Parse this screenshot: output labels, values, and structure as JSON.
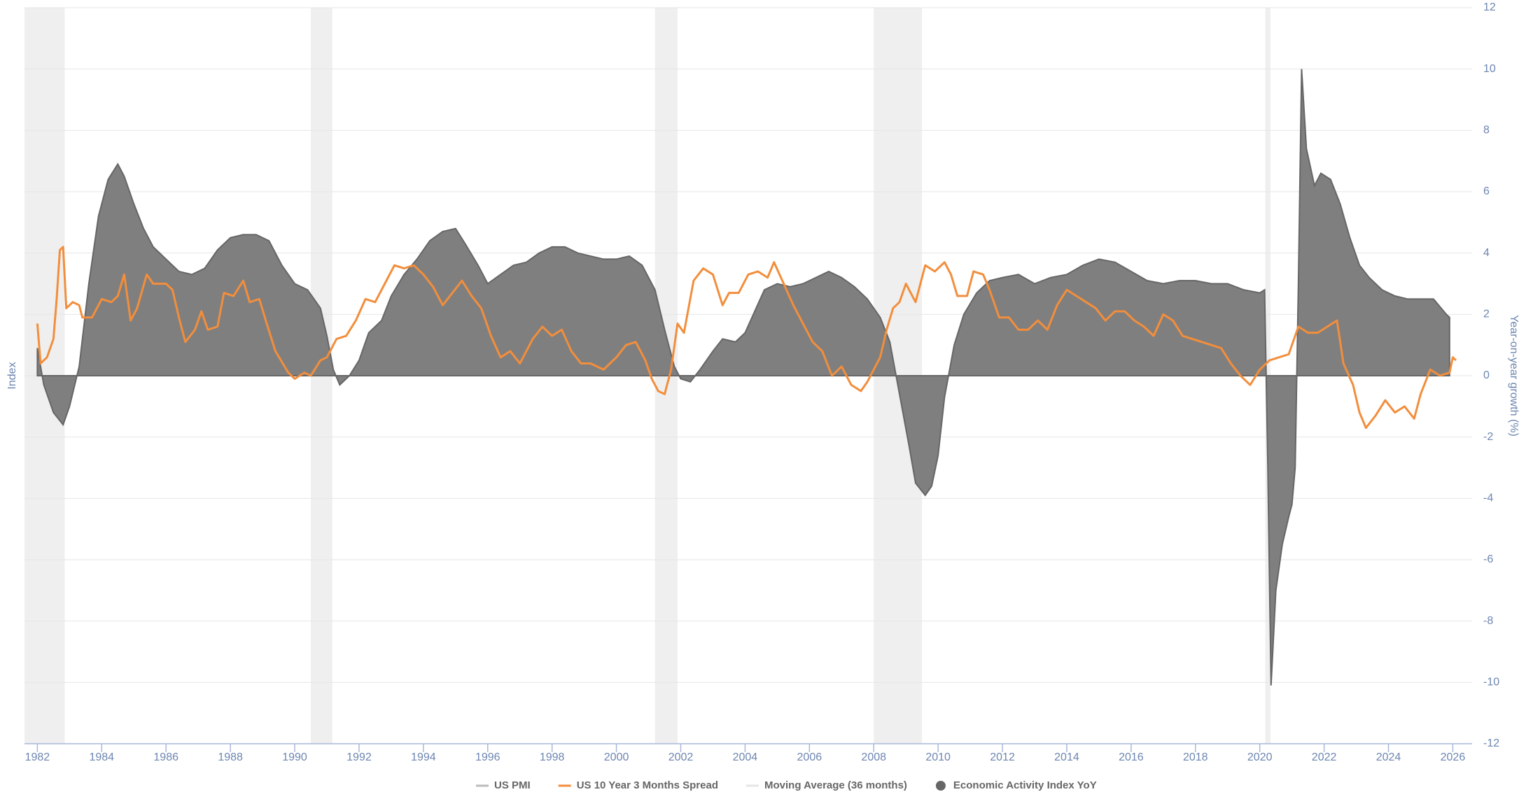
{
  "chart_data": {
    "type": "area-line",
    "y_axis_left_label": "Index",
    "y_axis_right_label": "Year-on-year growth (%)",
    "xlim": [
      1981.6,
      2026.6
    ],
    "xticks": [
      1982,
      1984,
      1986,
      1988,
      1990,
      1992,
      1994,
      1996,
      1998,
      2000,
      2002,
      2004,
      2006,
      2008,
      2010,
      2012,
      2014,
      2016,
      2018,
      2020,
      2022,
      2024,
      2026
    ],
    "y2lim": [
      -12,
      12
    ],
    "y2ticks": [
      -12,
      -10,
      -8,
      -6,
      -4,
      -2,
      0,
      2,
      4,
      6,
      8,
      10,
      12
    ],
    "grid": true,
    "recessions": [
      [
        1981.6,
        1982.85
      ],
      [
        1990.5,
        1991.17
      ],
      [
        2001.2,
        2001.9
      ],
      [
        2008.0,
        2009.5
      ],
      [
        2020.17,
        2020.33
      ]
    ],
    "recession_color": "#efefef",
    "series": [
      {
        "name": "US PMI",
        "color": "#bbbbbb",
        "kind": "line"
      },
      {
        "name": "US 10 Year 3 Months Spread",
        "color": "#f28e3c",
        "kind": "line",
        "axis": "y2",
        "x": [
          1982.0,
          1982.1,
          1982.3,
          1982.5,
          1982.6,
          1982.7,
          1982.8,
          1982.9,
          1983.1,
          1983.3,
          1983.4,
          1983.7,
          1984.0,
          1984.3,
          1984.5,
          1984.7,
          1984.9,
          1985.1,
          1985.4,
          1985.6,
          1986.0,
          1986.2,
          1986.4,
          1986.6,
          1986.9,
          1987.1,
          1987.3,
          1987.6,
          1987.8,
          1988.1,
          1988.4,
          1988.6,
          1988.9,
          1989.1,
          1989.4,
          1989.8,
          1990.0,
          1990.3,
          1990.5,
          1990.8,
          1991.0,
          1991.3,
          1991.6,
          1991.9,
          1992.2,
          1992.5,
          1992.8,
          1993.1,
          1993.4,
          1993.7,
          1994.0,
          1994.3,
          1994.6,
          1994.9,
          1995.2,
          1995.5,
          1995.8,
          1996.1,
          1996.4,
          1996.7,
          1997.0,
          1997.4,
          1997.7,
          1998.0,
          1998.3,
          1998.6,
          1998.9,
          1999.2,
          1999.6,
          2000.0,
          2000.3,
          2000.6,
          2000.9,
          2001.1,
          2001.3,
          2001.5,
          2001.7,
          2001.9,
          2002.1,
          2002.4,
          2002.7,
          2003.0,
          2003.3,
          2003.5,
          2003.8,
          2004.1,
          2004.4,
          2004.7,
          2004.9,
          2005.2,
          2005.5,
          2005.8,
          2006.1,
          2006.4,
          2006.7,
          2007.0,
          2007.3,
          2007.6,
          2007.8,
          2008.0,
          2008.2,
          2008.4,
          2008.6,
          2008.8,
          2009.0,
          2009.3,
          2009.6,
          2009.9,
          2010.2,
          2010.4,
          2010.6,
          2010.9,
          2011.1,
          2011.4,
          2011.6,
          2011.9,
          2012.2,
          2012.5,
          2012.8,
          2013.1,
          2013.4,
          2013.7,
          2014.0,
          2014.3,
          2014.6,
          2014.9,
          2015.2,
          2015.5,
          2015.8,
          2016.1,
          2016.4,
          2016.7,
          2017.0,
          2017.3,
          2017.6,
          2017.9,
          2018.2,
          2018.5,
          2018.8,
          2019.1,
          2019.4,
          2019.7,
          2020.0,
          2020.3,
          2020.6,
          2020.9,
          2021.2,
          2021.5,
          2021.8,
          2022.1,
          2022.4,
          2022.6,
          2022.9,
          2023.1,
          2023.3,
          2023.6,
          2023.9,
          2024.2,
          2024.5,
          2024.8,
          2025.0,
          2025.3,
          2025.6,
          2025.9,
          2026.0,
          2026.1
        ],
        "values": [
          1.7,
          0.4,
          0.6,
          1.2,
          2.5,
          4.1,
          4.2,
          2.2,
          2.4,
          2.3,
          1.9,
          1.9,
          2.5,
          2.4,
          2.6,
          3.3,
          1.8,
          2.2,
          3.3,
          3.0,
          3.0,
          2.8,
          1.9,
          1.1,
          1.5,
          2.1,
          1.5,
          1.6,
          2.7,
          2.6,
          3.1,
          2.4,
          2.5,
          1.8,
          0.8,
          0.1,
          -0.1,
          0.1,
          0.0,
          0.5,
          0.6,
          1.2,
          1.3,
          1.8,
          2.5,
          2.4,
          3.0,
          3.6,
          3.5,
          3.6,
          3.3,
          2.9,
          2.3,
          2.7,
          3.1,
          2.6,
          2.2,
          1.3,
          0.6,
          0.8,
          0.4,
          1.2,
          1.6,
          1.3,
          1.5,
          0.8,
          0.4,
          0.4,
          0.2,
          0.6,
          1.0,
          1.1,
          0.5,
          -0.1,
          -0.5,
          -0.6,
          0.2,
          1.7,
          1.4,
          3.1,
          3.5,
          3.3,
          2.3,
          2.7,
          2.7,
          3.3,
          3.4,
          3.2,
          3.7,
          3.0,
          2.3,
          1.7,
          1.1,
          0.8,
          0.0,
          0.3,
          -0.3,
          -0.5,
          -0.2,
          0.2,
          0.6,
          1.5,
          2.2,
          2.4,
          3.0,
          2.4,
          3.6,
          3.4,
          3.7,
          3.3,
          2.6,
          2.6,
          3.4,
          3.3,
          2.8,
          1.9,
          1.9,
          1.5,
          1.5,
          1.8,
          1.5,
          2.3,
          2.8,
          2.6,
          2.4,
          2.2,
          1.8,
          2.1,
          2.1,
          1.8,
          1.6,
          1.3,
          2.0,
          1.8,
          1.3,
          1.2,
          1.1,
          1.0,
          0.9,
          0.4,
          0.0,
          -0.3,
          0.2,
          0.5,
          0.6,
          0.7,
          1.6,
          1.4,
          1.4,
          1.6,
          1.8,
          0.4,
          -0.3,
          -1.2,
          -1.7,
          -1.3,
          -0.8,
          -1.2,
          -1.0,
          -1.4,
          -0.6,
          0.2,
          0.0,
          0.1,
          0.6,
          0.5
        ]
      },
      {
        "name": "Moving Average (36 months)",
        "color": "#e6e6e6",
        "kind": "line"
      },
      {
        "name": "Economic Activity Index YoY",
        "color": "#666666",
        "kind": "area",
        "axis": "y2",
        "x": [
          1982.0,
          1982.2,
          1982.5,
          1982.8,
          1983.0,
          1983.3,
          1983.6,
          1983.9,
          1984.2,
          1984.5,
          1984.7,
          1985.0,
          1985.3,
          1985.6,
          1986.0,
          1986.4,
          1986.8,
          1987.2,
          1987.6,
          1988.0,
          1988.4,
          1988.8,
          1989.2,
          1989.6,
          1990.0,
          1990.4,
          1990.8,
          1991.0,
          1991.2,
          1991.4,
          1991.7,
          1992.0,
          1992.3,
          1992.7,
          1993.0,
          1993.4,
          1993.8,
          1994.2,
          1994.6,
          1995.0,
          1995.3,
          1995.7,
          1996.0,
          1996.4,
          1996.8,
          1997.2,
          1997.6,
          1998.0,
          1998.4,
          1998.8,
          1999.2,
          1999.6,
          2000.0,
          2000.4,
          2000.8,
          2001.2,
          2001.5,
          2001.8,
          2002.0,
          2002.3,
          2002.6,
          2003.0,
          2003.3,
          2003.7,
          2004.0,
          2004.3,
          2004.6,
          2005.0,
          2005.4,
          2005.8,
          2006.2,
          2006.6,
          2007.0,
          2007.4,
          2007.8,
          2008.2,
          2008.5,
          2008.8,
          2009.1,
          2009.3,
          2009.6,
          2009.8,
          2010.0,
          2010.2,
          2010.5,
          2010.8,
          2011.2,
          2011.6,
          2012.0,
          2012.5,
          2013.0,
          2013.5,
          2014.0,
          2014.5,
          2015.0,
          2015.5,
          2016.0,
          2016.5,
          2017.0,
          2017.5,
          2018.0,
          2018.5,
          2019.0,
          2019.5,
          2020.0,
          2020.15,
          2020.25,
          2020.35,
          2020.5,
          2020.7,
          2020.9,
          2021.0,
          2021.1,
          2021.2,
          2021.3,
          2021.45,
          2021.7,
          2021.9,
          2022.2,
          2022.5,
          2022.8,
          2023.1,
          2023.4,
          2023.8,
          2024.2,
          2024.6,
          2025.0,
          2025.4,
          2025.8,
          2025.9
        ],
        "values": [
          0.9,
          -0.3,
          -1.2,
          -1.6,
          -1.0,
          0.3,
          3.0,
          5.2,
          6.4,
          6.9,
          6.5,
          5.6,
          4.8,
          4.2,
          3.8,
          3.4,
          3.3,
          3.5,
          4.1,
          4.5,
          4.6,
          4.6,
          4.4,
          3.6,
          3.0,
          2.8,
          2.2,
          1.3,
          0.2,
          -0.3,
          0.0,
          0.5,
          1.4,
          1.8,
          2.6,
          3.3,
          3.8,
          4.4,
          4.7,
          4.8,
          4.3,
          3.6,
          3.0,
          3.3,
          3.6,
          3.7,
          4.0,
          4.2,
          4.2,
          4.0,
          3.9,
          3.8,
          3.8,
          3.9,
          3.6,
          2.8,
          1.5,
          0.3,
          -0.1,
          -0.2,
          0.2,
          0.8,
          1.2,
          1.1,
          1.4,
          2.1,
          2.8,
          3.0,
          2.9,
          3.0,
          3.2,
          3.4,
          3.2,
          2.9,
          2.5,
          1.9,
          1.1,
          -0.6,
          -2.3,
          -3.5,
          -3.9,
          -3.6,
          -2.6,
          -0.7,
          1.0,
          2.0,
          2.7,
          3.1,
          3.2,
          3.3,
          3.0,
          3.2,
          3.3,
          3.6,
          3.8,
          3.7,
          3.4,
          3.1,
          3.0,
          3.1,
          3.1,
          3.0,
          3.0,
          2.8,
          2.7,
          2.8,
          -3.0,
          -10.1,
          -7.0,
          -5.5,
          -4.6,
          -4.2,
          -3.0,
          3.0,
          10.0,
          7.4,
          6.2,
          6.6,
          6.4,
          5.6,
          4.5,
          3.6,
          3.2,
          2.8,
          2.6,
          2.5,
          2.5,
          2.5,
          2.0,
          1.9
        ]
      }
    ]
  }
}
